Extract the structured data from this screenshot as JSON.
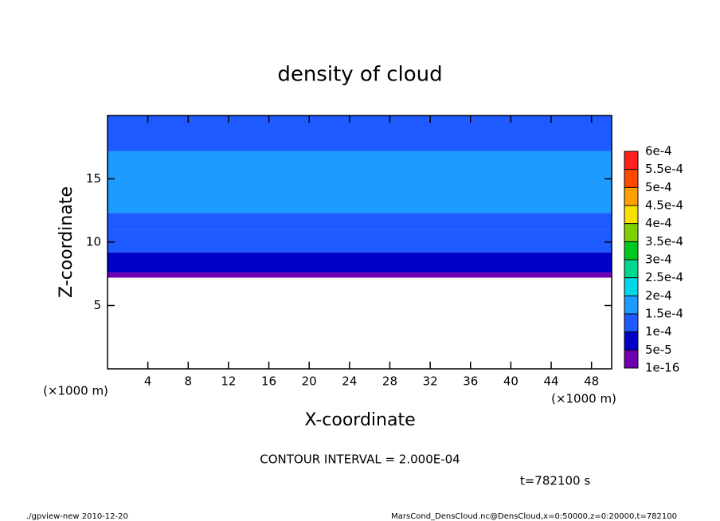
{
  "chart_data": {
    "type": "contour",
    "title": "density of cloud",
    "xlabel": "X-coordinate",
    "ylabel": "Z-coordinate",
    "xunit": "(×1000 m)",
    "yunit": "(×1000 m)",
    "xlim": [
      0,
      50
    ],
    "xticks": [
      4,
      8,
      12,
      16,
      20,
      24,
      28,
      32,
      36,
      40,
      44,
      48
    ],
    "ylim": [
      0,
      20
    ],
    "yticks": [
      5,
      10,
      15
    ],
    "layers": {
      "z_edges": [
        7.2,
        7.6,
        8.3,
        9.2,
        11,
        12.3,
        17.2,
        20
      ],
      "values": [
        3e-05,
        7e-05,
        9e-05,
        0.00012,
        0.00014,
        0.00017,
        0.00013
      ]
    },
    "colorbar": {
      "levels": [
        {
          "value": 1e-16,
          "label": "1e-16"
        },
        {
          "value": 5e-05,
          "label": "5e-5"
        },
        {
          "value": 0.0001,
          "label": "1e-4"
        },
        {
          "value": 0.00015,
          "label": "1.5e-4"
        },
        {
          "value": 0.0002,
          "label": "2e-4"
        },
        {
          "value": 0.00025,
          "label": "2.5e-4"
        },
        {
          "value": 0.0003,
          "label": "3e-4"
        },
        {
          "value": 0.00035,
          "label": "3.5e-4"
        },
        {
          "value": 0.0004,
          "label": "4e-4"
        },
        {
          "value": 0.00045,
          "label": "4.5e-4"
        },
        {
          "value": 0.0005,
          "label": "5e-4"
        },
        {
          "value": 0.00055,
          "label": "5.5e-4"
        },
        {
          "value": 0.0006,
          "label": "6e-4"
        }
      ],
      "colors": [
        "#7000b0",
        "#0000c8",
        "#1e5aff",
        "#1e9bff",
        "#00d8e8",
        "#00d890",
        "#00c820",
        "#80d000",
        "#f8e000",
        "#ffa000",
        "#ff4800",
        "#ff2020",
        "#ff9c9c"
      ]
    },
    "contour_interval": "CONTOUR INTERVAL = 2.000E-04",
    "time": "t=782100 s",
    "footer_left": "./gpview-new   2010-12-20",
    "footer_right": "MarsCond_DensCloud.nc@DensCloud,x=0:50000,z=0:20000,t=782100"
  }
}
